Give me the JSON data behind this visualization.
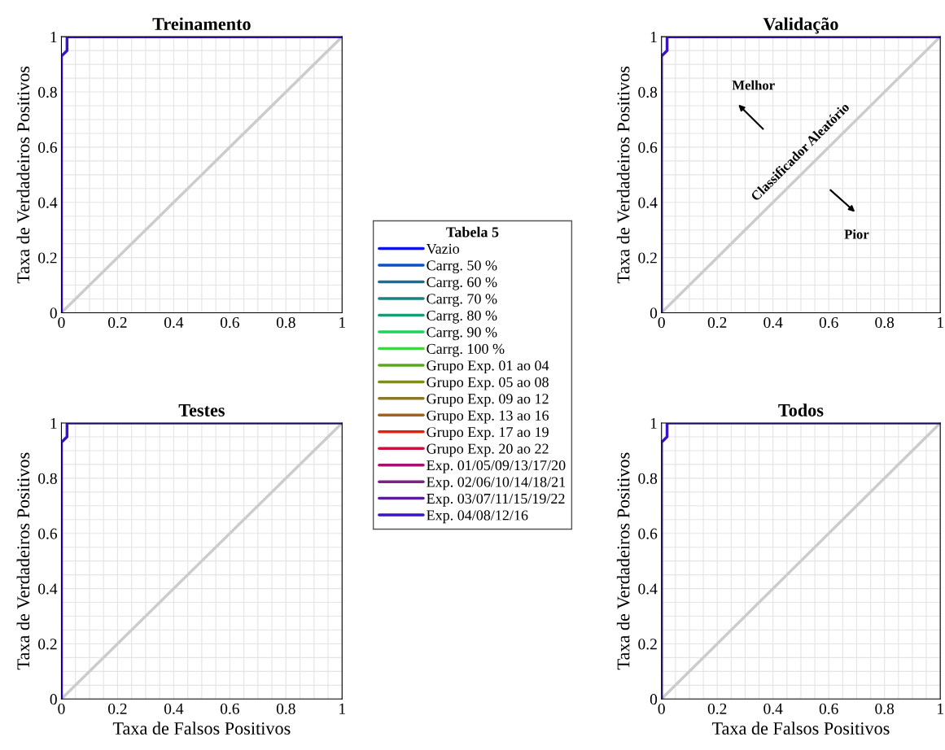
{
  "chart_data": [
    {
      "type": "line",
      "title": "Treinamento",
      "ylabel": "Taxa de Verdadeiros Positivos",
      "legend_title": "Tabela 5",
      "legend": "right",
      "xlim": [
        0,
        1
      ],
      "ylim": [
        0,
        1
      ],
      "xticks": [
        0,
        0.2,
        0.4,
        0.6,
        0.8,
        1
      ],
      "yticks": [
        0,
        0.2,
        0.4,
        0.6,
        0.8,
        1
      ],
      "grid": true,
      "series": [
        {
          "type": "line",
          "color": "#cccccc",
          "x": [
            0,
            1
          ],
          "values": [
            0,
            1
          ]
        },
        {
          "name": "Vazio",
          "color": "#0a14e6",
          "values": [
            null
          ]
        },
        {
          "name": "Carrg. 50 %",
          "color": "#0a50c8",
          "values": [
            null
          ]
        },
        {
          "name": "Carrg. 60 %",
          "color": "#1a6e96",
          "values": [
            null
          ]
        },
        {
          "name": "Carrg. 70 %",
          "color": "#1a8282",
          "values": [
            null
          ]
        },
        {
          "name": "Carrg. 80 %",
          "color": "#1a9b78",
          "values": [
            null
          ]
        },
        {
          "name": "Carrg. 90 %",
          "color": "#1ed25a",
          "values": [
            null
          ]
        },
        {
          "name": "Carrg. 100 %",
          "color": "#28e628",
          "values": [
            null
          ]
        },
        {
          "name": "Grupo Exp. 01 ao 04",
          "color": "#5aaa1e",
          "values": [
            null
          ]
        },
        {
          "name": "Grupo Exp. 05 ao 08",
          "color": "#828c1e",
          "values": [
            null
          ]
        },
        {
          "name": "Grupo Exp. 09 ao 12",
          "color": "#8c7828",
          "values": [
            null
          ]
        },
        {
          "name": "Grupo Exp. 13 ao 16",
          "color": "#a0641e",
          "values": [
            null
          ]
        },
        {
          "name": "Grupo Exp. 17 ao 19",
          "color": "#e61e0a",
          "values": [
            null
          ]
        },
        {
          "name": "Grupo Exp. 20 ao 22",
          "color": "#c8143c",
          "values": [
            null
          ]
        },
        {
          "name": "Exp. 01/05/09/13/17/20",
          "color": "#a0146e",
          "values": [
            null
          ]
        },
        {
          "name": "Exp. 02/06/10/14/18/21",
          "color": "#821e8c",
          "values": [
            null
          ]
        },
        {
          "name": "Exp. 03/07/11/15/19/22",
          "color": "#6414b4",
          "values": [
            null
          ]
        },
        {
          "name": "Exp. 04/08/12/16",
          "color": "#3c14c8",
          "x": [
            0,
            0,
            0.02,
            0.02,
            1
          ],
          "values": [
            0,
            0.93,
            0.95,
            1,
            1
          ]
        }
      ]
    },
    {
      "type": "line",
      "title": "Validação",
      "ylabel": "Taxa de Verdadeiros Positivos",
      "xlim": [
        0,
        1
      ],
      "ylim": [
        0,
        1
      ],
      "xticks": [
        0,
        0.2,
        0.4,
        0.6,
        0.8,
        1
      ],
      "yticks": [
        0,
        0.2,
        0.4,
        0.6,
        0.8,
        1
      ],
      "grid": true,
      "annotations": [
        "Melhor",
        "Pior",
        {
          "text": "Classificador Aleatório",
          "x": 0.5,
          "y": 0.5
        }
      ],
      "series": [
        {
          "type": "line",
          "color": "#cccccc",
          "x": [
            0,
            1
          ],
          "values": [
            0,
            1
          ]
        },
        {
          "color": "#3c14c8",
          "x": [
            0,
            0,
            0.02,
            0.02,
            1
          ],
          "values": [
            0,
            0.93,
            0.95,
            1,
            1
          ]
        }
      ]
    },
    {
      "type": "line",
      "title": "Testes",
      "xlabel": "Taxa de Falsos Positivos",
      "ylabel": "Taxa de Verdadeiros Positivos",
      "xlim": [
        0,
        1
      ],
      "ylim": [
        0,
        1
      ],
      "xticks": [
        0,
        0.2,
        0.4,
        0.6,
        0.8,
        1
      ],
      "yticks": [
        0,
        0.2,
        0.4,
        0.6,
        0.8,
        1
      ],
      "grid": true,
      "series": [
        {
          "type": "line",
          "color": "#cccccc",
          "x": [
            0,
            1
          ],
          "values": [
            0,
            1
          ]
        },
        {
          "color": "#3c14c8",
          "x": [
            0,
            0,
            0.02,
            0.02,
            1
          ],
          "values": [
            0,
            0.93,
            0.95,
            1,
            1
          ]
        }
      ]
    },
    {
      "type": "line",
      "title": "Todos",
      "xlabel": "Taxa de Falsos Positivos",
      "ylabel": "Taxa de Verdadeiros Positivos",
      "xlim": [
        0,
        1
      ],
      "ylim": [
        0,
        1
      ],
      "xticks": [
        0,
        0.2,
        0.4,
        0.6,
        0.8,
        1
      ],
      "yticks": [
        0,
        0.2,
        0.4,
        0.6,
        0.8,
        1
      ],
      "grid": true,
      "series": [
        {
          "type": "line",
          "color": "#cccccc",
          "x": [
            0,
            1
          ],
          "values": [
            0,
            1
          ]
        },
        {
          "color": "#3c14c8",
          "x": [
            0,
            0,
            0.02,
            0.02,
            1
          ],
          "values": [
            0,
            0.93,
            0.95,
            1,
            1
          ]
        }
      ]
    }
  ]
}
